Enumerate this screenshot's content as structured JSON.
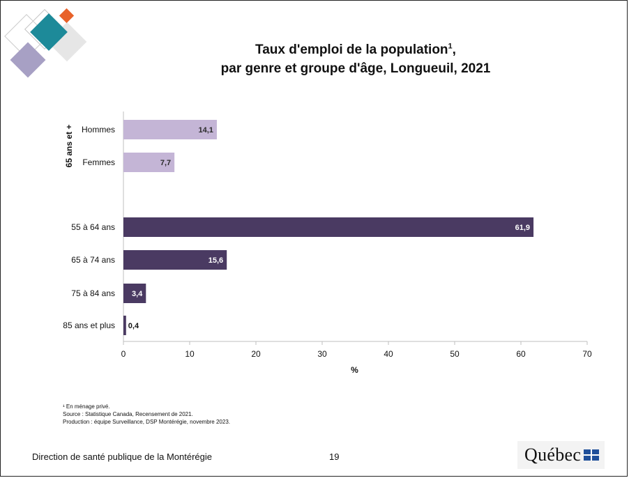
{
  "title_line1": "Taux d'emploi de la population",
  "title_sup": "1",
  "title_line1_suffix": ",",
  "title_line2": "par genre et groupe d'âge, Longueuil, 2021",
  "chart_data": {
    "type": "bar",
    "orientation": "horizontal",
    "categories": [
      "Hommes",
      "Femmes",
      "55 à 64 ans",
      "65 à 74 ans",
      "75 à 84 ans",
      "85 ans et plus"
    ],
    "values": [
      14.1,
      7.7,
      61.9,
      15.6,
      3.4,
      0.4
    ],
    "value_labels": [
      "14,1",
      "7,7",
      "61,9",
      "15,6",
      "3,4",
      "0,4"
    ],
    "group_label": "65 ans et +",
    "xlabel": "%",
    "xlim": [
      0,
      70
    ],
    "xticks": [
      "0",
      "10",
      "20",
      "30",
      "40",
      "50",
      "60",
      "70"
    ],
    "grid": false,
    "colors": {
      "gender": "#c4b5d6",
      "age": "#4a3a62"
    }
  },
  "notes": {
    "note1": "¹ En ménage privé.",
    "source": "Source : Statistique Canada, Recensement de 2021.",
    "production": "Production : équipe Surveillance, DSP Montérégie, novembre 2023."
  },
  "footer": {
    "org": "Direction de santé publique de la Montérégie",
    "page": "19",
    "brand": "Québec"
  }
}
